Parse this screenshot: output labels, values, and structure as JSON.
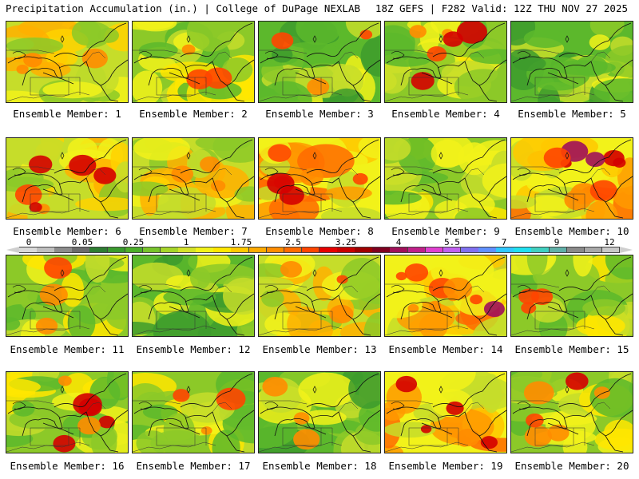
{
  "header": {
    "left": "Precipitation Accumulation (in.) | College of DuPage NEXLAB",
    "right": "18Z GEFS | F282 Valid: 12Z THU NOV 27 2025"
  },
  "panels": [
    {
      "label": "Ensemble Member: 1",
      "palette": "wet",
      "hot": 1
    },
    {
      "label": "Ensemble Member: 2",
      "palette": "mixed",
      "hot": 1
    },
    {
      "label": "Ensemble Member: 3",
      "palette": "green",
      "hot": 1
    },
    {
      "label": "Ensemble Member: 4",
      "palette": "mixed",
      "hot": 2
    },
    {
      "label": "Ensemble Member: 5",
      "palette": "green",
      "hot": 0
    },
    {
      "label": "Ensemble Member: 6",
      "palette": "wet",
      "hot": 2
    },
    {
      "label": "Ensemble Member: 7",
      "palette": "wet",
      "hot": 1
    },
    {
      "label": "Ensemble Member: 8",
      "palette": "hot",
      "hot": 2
    },
    {
      "label": "Ensemble Member: 9",
      "palette": "mixed",
      "hot": 0
    },
    {
      "label": "Ensemble Member: 10",
      "palette": "hot",
      "hot": 3
    },
    {
      "label": "Ensemble Member: 11",
      "palette": "mixed",
      "hot": 1
    },
    {
      "label": "Ensemble Member: 12",
      "palette": "green",
      "hot": 0
    },
    {
      "label": "Ensemble Member: 13",
      "palette": "wet",
      "hot": 1
    },
    {
      "label": "Ensemble Member: 14",
      "palette": "hot",
      "hot": 3
    },
    {
      "label": "Ensemble Member: 15",
      "palette": "mixed",
      "hot": 1
    },
    {
      "label": "Ensemble Member: 16",
      "palette": "mixed",
      "hot": 2
    },
    {
      "label": "Ensemble Member: 17",
      "palette": "mixed",
      "hot": 1
    },
    {
      "label": "Ensemble Member: 18",
      "palette": "green",
      "hot": 1
    },
    {
      "label": "Ensemble Member: 19",
      "palette": "hot",
      "hot": 2
    },
    {
      "label": "Ensemble Member: 20",
      "palette": "mixed",
      "hot": 2
    }
  ],
  "colorbar": {
    "ticks": [
      "0",
      "0.05",
      "0.25",
      "1",
      "1.75",
      "2.5",
      "3.25",
      "4",
      "5.5",
      "7",
      "9",
      "12"
    ],
    "colors": [
      "#d9d9d9",
      "#bfbfbf",
      "#8c8c8c",
      "#6b6b6b",
      "#2e7d32",
      "#3a9a2e",
      "#4cae2a",
      "#77c32b",
      "#a6d52a",
      "#d4e22a",
      "#f2f21a",
      "#ffe600",
      "#ffc800",
      "#ffaa00",
      "#ff8c00",
      "#ff6a00",
      "#ff4500",
      "#e60000",
      "#c80000",
      "#a00000",
      "#800020",
      "#a0105a",
      "#c0208a",
      "#e040d0",
      "#c060f0",
      "#8070f0",
      "#6090ff",
      "#30c8ff",
      "#20e0f0",
      "#40d0c0",
      "#60b0a8",
      "#8a8a8a",
      "#a8a8a8",
      "#c8c8c8"
    ]
  }
}
